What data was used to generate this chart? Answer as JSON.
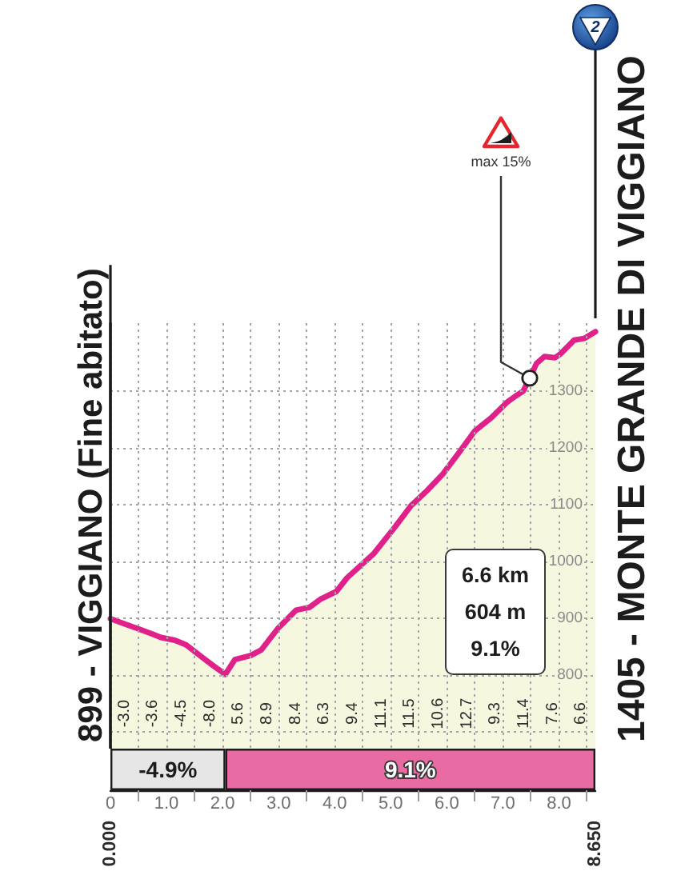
{
  "chart_data": [
    {
      "type": "area",
      "x": [
        0,
        0.25,
        0.5,
        0.75,
        0.9,
        1.15,
        1.35,
        1.65,
        1.85,
        2.05,
        2.22,
        2.5,
        2.69,
        2.98,
        3.31,
        3.55,
        3.74,
        4.03,
        4.22,
        4.69,
        5.07,
        5.36,
        5.65,
        5.93,
        6.22,
        6.5,
        6.79,
        7.08,
        7.22,
        7.36,
        7.48,
        7.6,
        7.74,
        7.93,
        8.03,
        8.27,
        8.45,
        8.65
      ],
      "values": [
        899,
        890,
        881,
        872,
        866,
        861,
        853,
        830,
        815,
        801,
        827,
        834,
        844,
        881,
        914,
        919,
        933,
        947,
        971,
        1013,
        1060,
        1098,
        1125,
        1154,
        1192,
        1230,
        1253,
        1281,
        1291,
        1300,
        1323,
        1349,
        1361,
        1359,
        1366,
        1390,
        1393,
        1405
      ],
      "color": "#e0218a",
      "xlim": [
        0,
        8.65
      ],
      "ylim": [
        670,
        1420
      ],
      "xticks": [
        0,
        0.5,
        1,
        1.5,
        2,
        2.5,
        3,
        3.5,
        4,
        4.5,
        5,
        5.5,
        6,
        6.5,
        7,
        7.5,
        8,
        8.5
      ],
      "yticks": [
        {
          "value": 700,
          "label": null
        },
        800,
        900,
        1000,
        1100,
        1200,
        1300
      ],
      "grid": true,
      "tick_labels": "y",
      "ref_lines": [
        {
          "axis": "x",
          "value": 0,
          "label": "899 - VIGGIANO (Fine abitato)"
        }
      ],
      "annotations": [
        {
          "text": "max 15%",
          "x": 7.48,
          "y": 1323
        },
        {
          "text": "1405 - MONTE GRANDE DI VIGGIANO",
          "x": 8.65,
          "y": 1405
        },
        "2",
        "6.6 km",
        "604 m",
        "9.1%",
        "-3.0",
        "-3.6",
        "-4.5",
        "-8.0",
        "5.6",
        "8.9",
        "8.4",
        "6.3",
        "9.4",
        "11.1",
        "11.5",
        "10.6",
        "12.7",
        "9.3",
        "11.4",
        "7.6",
        "6.6"
      ]
    },
    {
      "type": "bar",
      "orientation": "horizontal",
      "stacked": true,
      "categories": [
        null
      ],
      "series": [
        {
          "color": "#e6e6e6",
          "values": [
            2.05
          ]
        },
        {
          "color": "#e96ba3",
          "values": [
            6.6
          ]
        }
      ],
      "xlim": [
        0,
        8.65
      ],
      "xticks": [
        0,
        {
          "value": 0.5,
          "label": null
        },
        {
          "value": 1,
          "label": "1.0"
        },
        {
          "value": 1.5,
          "label": null
        },
        {
          "value": 2,
          "label": "2.0"
        },
        {
          "value": 2.5,
          "label": null
        },
        {
          "value": 3,
          "label": "3.0"
        },
        {
          "value": 3.5,
          "label": null
        },
        {
          "value": 4,
          "label": "4.0"
        },
        {
          "value": 4.5,
          "label": null
        },
        {
          "value": 5,
          "label": "5.0"
        },
        {
          "value": 5.5,
          "label": null
        },
        {
          "value": 6,
          "label": "6.0"
        },
        {
          "value": 6.5,
          "label": null
        },
        {
          "value": 7,
          "label": "7.0"
        },
        {
          "value": 7.5,
          "label": null
        },
        {
          "value": 8,
          "label": "8.0"
        },
        {
          "value": 8.5,
          "label": null
        }
      ],
      "tick_labels": "x",
      "annotations": [
        "-4.9%",
        "9.1%",
        "0.000",
        "8.650"
      ]
    }
  ]
}
